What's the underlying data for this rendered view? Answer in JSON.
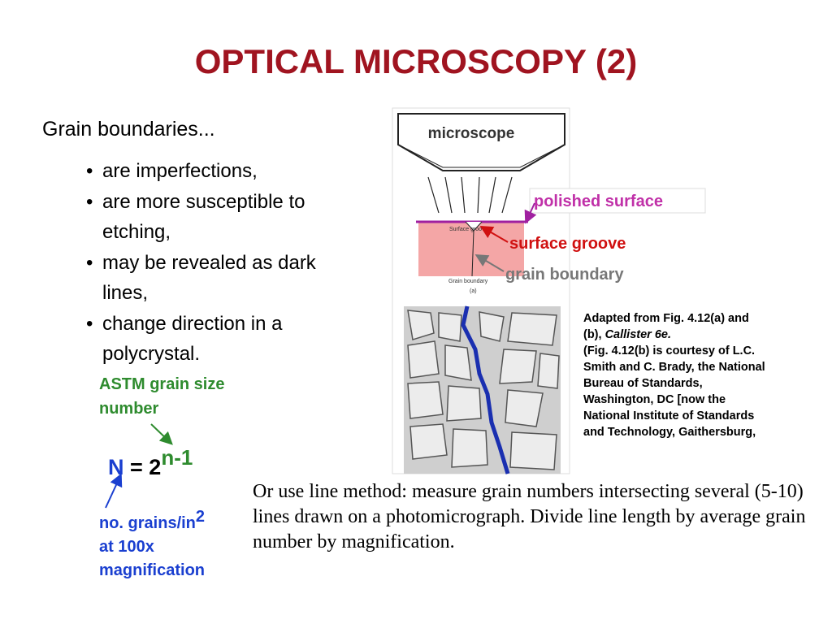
{
  "title": "OPTICAL MICROSCOPY (2)",
  "heading": "Grain boundaries...",
  "bullets": [
    "are imperfections,",
    "are more susceptible to etching,",
    "may be revealed as dark lines,",
    "change direction in a polycrystal."
  ],
  "astm_label": "ASTM grain size number",
  "formula": {
    "n": "N",
    "equals": "= 2",
    "exponent": "n-1"
  },
  "grains_label": {
    "text": "no. grains/in",
    "superscript": "2",
    "line2": "at 100x",
    "line3": "magnification"
  },
  "diagram": {
    "microscope": "microscope",
    "polished_surface": "polished surface",
    "surface_groove": "surface groove",
    "grain_boundary": "grain boundary",
    "small_surface_groove": "Surface groove",
    "small_grain_boundary": "Grain boundary",
    "panel": "(a)"
  },
  "caption": {
    "prefix": "Adapted from Fig. 4.12(a) and (b), ",
    "italic": "Callister 6e.",
    "rest": "(Fig. 4.12(b) is courtesy of L.C. Smith and C. Brady,  the National Bureau of Standards, Washington, DC [now the National Institute of Standards and Technology, Gaithersburg,"
  },
  "note": "Or use line method: measure grain numbers intersecting several (5-10) lines drawn on a photomicrograph. Divide line length by average grain number by magnification."
}
